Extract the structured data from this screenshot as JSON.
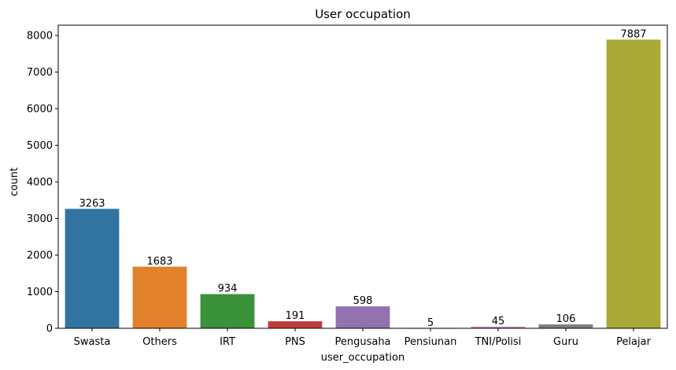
{
  "chart_data": {
    "type": "bar",
    "title": "User occupation",
    "xlabel": "user_occupation",
    "ylabel": "count",
    "categories": [
      "Swasta",
      "Others",
      "IRT",
      "PNS",
      "Pengusaha",
      "Pensiunan",
      "TNI/Polisi",
      "Guru",
      "Pelajar"
    ],
    "values": [
      3263,
      1683,
      934,
      191,
      598,
      5,
      45,
      106,
      7887
    ],
    "data_labels": [
      "3263",
      "1683",
      "934",
      "191",
      "598",
      "5",
      "45",
      "106",
      "7887"
    ],
    "colors": [
      "#3274a1",
      "#e1812c",
      "#3a923a",
      "#c03d3e",
      "#9372b2",
      "#845b53",
      "#d684bd",
      "#7f7f7f",
      "#a9aa35"
    ],
    "yticks": [
      0,
      1000,
      2000,
      3000,
      4000,
      5000,
      6000,
      7000,
      8000
    ],
    "ytick_labels": [
      "0",
      "1000",
      "2000",
      "3000",
      "4000",
      "5000",
      "6000",
      "7000",
      "8000"
    ],
    "ylim": [
      0,
      8281
    ],
    "grid": false,
    "legend": "none"
  }
}
